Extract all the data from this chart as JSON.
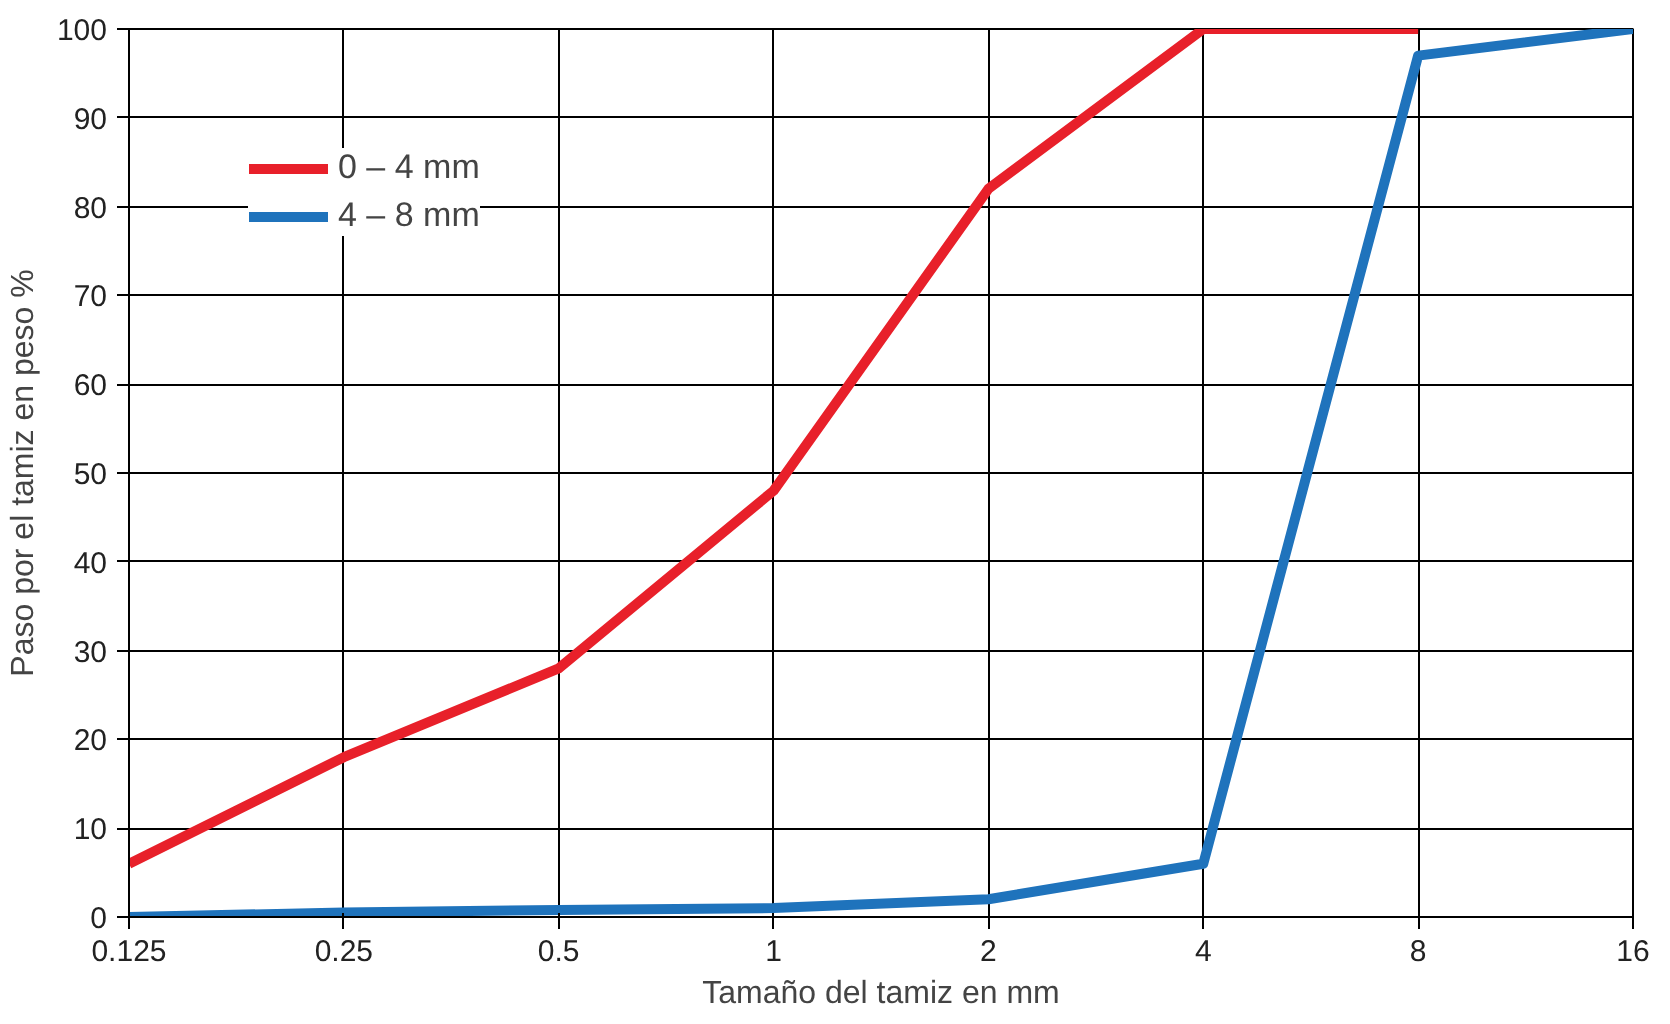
{
  "chart_data": {
    "type": "line",
    "xlabel": "Tamaño del tamiz en mm",
    "ylabel": "Paso por el tamiz en peso %",
    "x": [
      0.125,
      0.25,
      0.5,
      1,
      2,
      4,
      8,
      16
    ],
    "series": [
      {
        "name": "0 – 4 mm",
        "color": "#e8202a",
        "x": [
          0.125,
          0.25,
          0.5,
          1,
          2,
          4,
          8
        ],
        "values": [
          6,
          18,
          28,
          48,
          82,
          100,
          100
        ]
      },
      {
        "name": "4 – 8 mm",
        "color": "#1f73bc",
        "values": [
          0,
          0.5,
          0.8,
          1,
          2,
          6,
          97,
          100
        ]
      }
    ],
    "log": "x",
    "xlim": [
      0.125,
      16
    ],
    "xticks": [
      0.125,
      0.25,
      0.5,
      1,
      2,
      4,
      8,
      16
    ],
    "ylim": [
      0,
      100
    ],
    "yticks": [
      0,
      10,
      20,
      30,
      40,
      50,
      60,
      70,
      80,
      90,
      100
    ],
    "grid": true,
    "legend": "top left",
    "marker": "none",
    "line_style": "solid"
  }
}
